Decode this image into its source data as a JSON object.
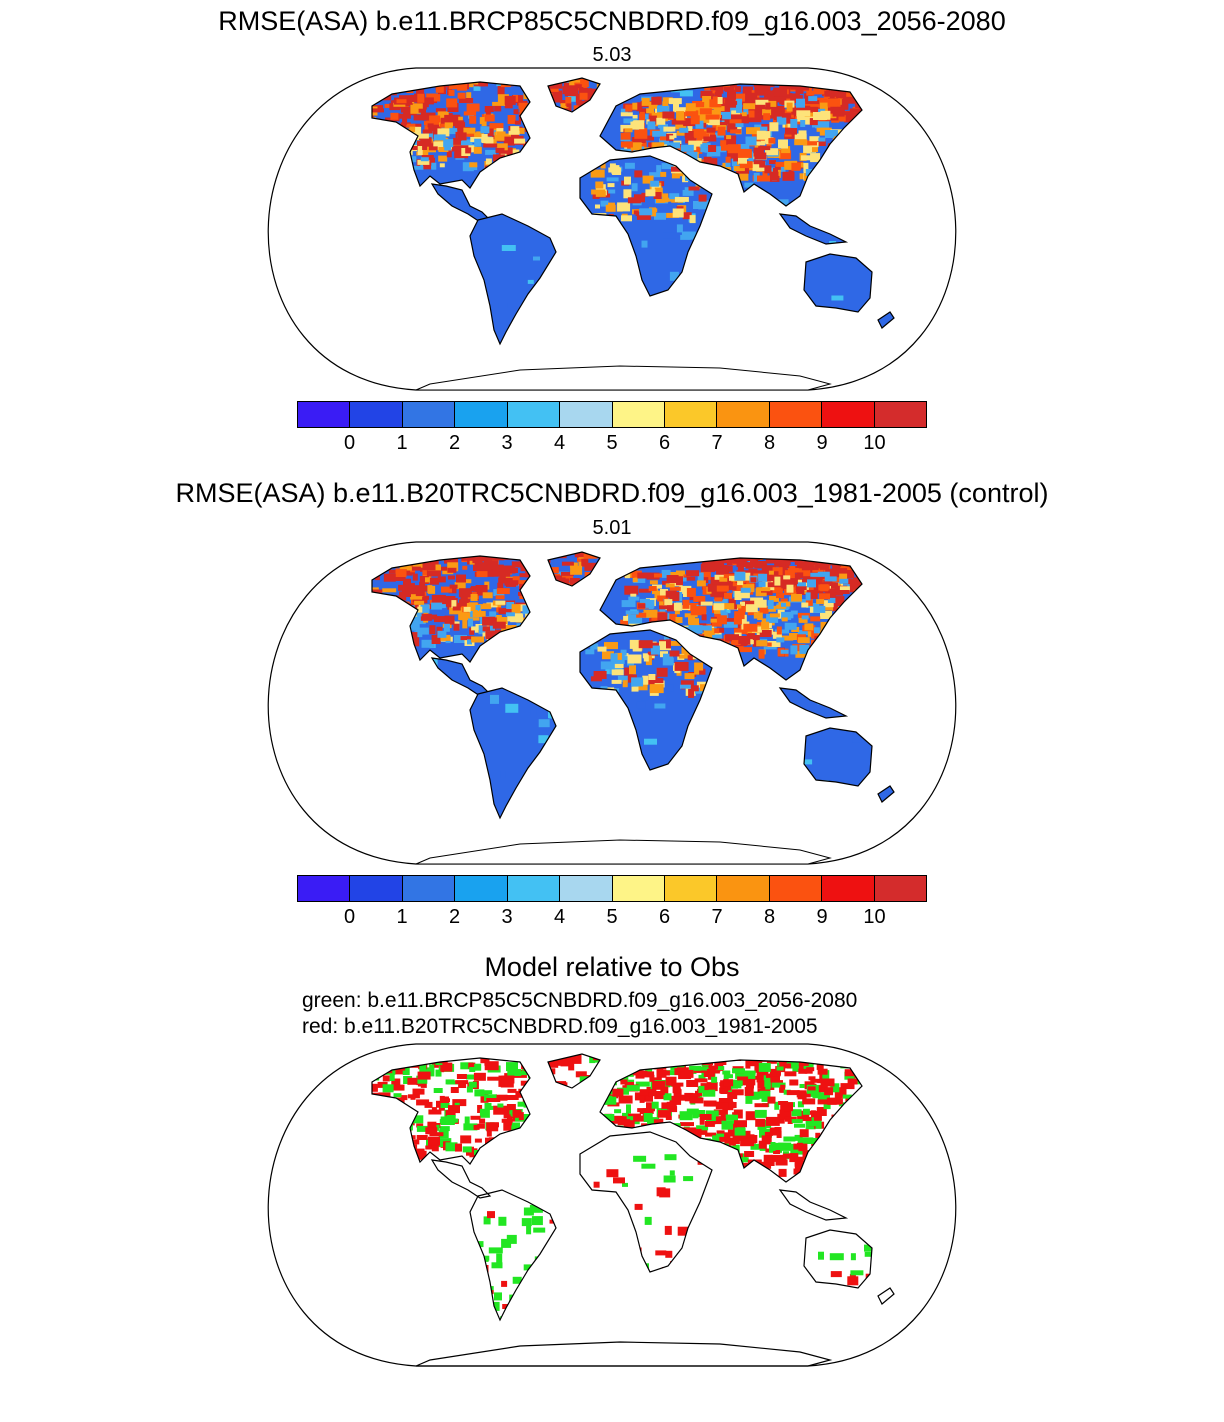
{
  "colors": {
    "palette": [
      "#3a1cf5",
      "#2244e6",
      "#3275e4",
      "#19a2ef",
      "#43c1f3",
      "#a8d7ef",
      "#fef487",
      "#fbc829",
      "#fa9411",
      "#fb5210",
      "#ee1111",
      "#d42c2c"
    ],
    "land_primary": "#2f68e6",
    "land_secondary": "#42a5f0",
    "hot": "#d62a24",
    "warm": "#fb9a14",
    "yellow": "#fde37a",
    "green": "#22e622",
    "red": "#ee1111",
    "coast": "#000000"
  },
  "panels": [
    {
      "id": "future",
      "title": "RMSE(ASA) b.e11.BRCP85C5CNBDRD.f09_g16.003_2056-2080",
      "value": "5.03"
    },
    {
      "id": "control",
      "title": "RMSE(ASA) b.e11.B20TRC5CNBDRD.f09_g16.003_1981-2005 (control)",
      "value": "5.01"
    }
  ],
  "colorbar": {
    "ticks": [
      "0",
      "1",
      "2",
      "3",
      "4",
      "5",
      "6",
      "7",
      "8",
      "9",
      "10"
    ]
  },
  "comparison": {
    "title": "Model relative to Obs",
    "green_label": "green: b.e11.BRCP85C5CNBDRD.f09_g16.003_2056-2080",
    "red_label": "red: b.e11.B20TRC5CNBDRD.f09_g16.003_1981-2005"
  }
}
